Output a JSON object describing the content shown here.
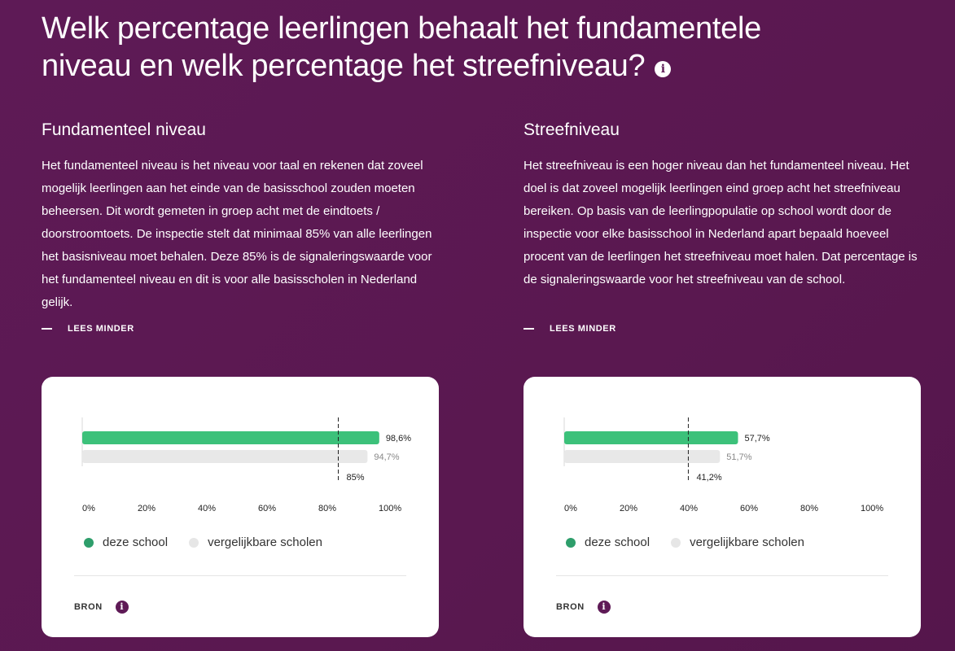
{
  "title": "Welk percentage leerlingen behaalt het fundamentele niveau en welk percentage het streefniveau?",
  "icons": {
    "title_info": "info-icon",
    "read_less": "minus-icon",
    "bron_info": "info-icon"
  },
  "colors": {
    "background": "#5e1a56",
    "school": "#3cc17a",
    "comparable": "#e8e8e8",
    "accent": "#5e1a56"
  },
  "columns": [
    {
      "heading": "Fundamenteel niveau",
      "text": "Het fundamenteel niveau is het niveau voor taal en rekenen dat zoveel mogelijk leerlingen aan het einde van de basisschool zouden moeten beheersen. Dit wordt gemeten in groep acht met de eindtoets / doorstroomtoets. De inspectie stelt dat minimaal 85% van alle leerlingen het basisniveau moet behalen. Deze 85% is de signaleringswaarde voor het fundamenteel niveau en dit is voor alle basisscholen in Nederland gelijk.",
      "read_less": "LEES MINDER"
    },
    {
      "heading": "Streefniveau",
      "text": "Het streefniveau is een hoger niveau dan het fundamenteel niveau. Het doel is dat zoveel mogelijk leerlingen eind groep acht het streefniveau bereiken. Op basis van de leerlingpopulatie op school wordt door de inspectie voor elke basisschool in Nederland apart bepaald hoeveel procent van de leerlingen het streefniveau moet halen. Dat percentage is de signaleringswaarde voor het streefniveau van de school.",
      "read_less": "LEES MINDER"
    }
  ],
  "legend": {
    "school": "deze school",
    "comparable": "vergelijkbare scholen"
  },
  "bron": "BRON",
  "chart_data": [
    {
      "type": "bar",
      "orientation": "horizontal",
      "title": "Fundamenteel niveau",
      "series": [
        {
          "name": "deze school",
          "value": 98.6,
          "label": "98,6%"
        },
        {
          "name": "vergelijkbare scholen",
          "value": 94.7,
          "label": "94,7%"
        }
      ],
      "threshold": {
        "value": 85,
        "label": "85%"
      },
      "xlim": [
        0,
        100
      ],
      "ticks": [
        0,
        20,
        40,
        60,
        80,
        100
      ],
      "tick_labels": [
        "0%",
        "20%",
        "40%",
        "60%",
        "80%",
        "100%"
      ]
    },
    {
      "type": "bar",
      "orientation": "horizontal",
      "title": "Streefniveau",
      "series": [
        {
          "name": "deze school",
          "value": 57.7,
          "label": "57,7%"
        },
        {
          "name": "vergelijkbare scholen",
          "value": 51.7,
          "label": "51,7%"
        }
      ],
      "threshold": {
        "value": 41.2,
        "label": "41,2%"
      },
      "xlim": [
        0,
        100
      ],
      "ticks": [
        0,
        20,
        40,
        60,
        80,
        100
      ],
      "tick_labels": [
        "0%",
        "20%",
        "40%",
        "60%",
        "80%",
        "100%"
      ]
    }
  ]
}
